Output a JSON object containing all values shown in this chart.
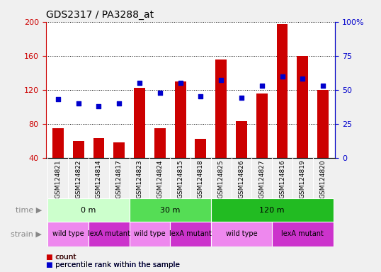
{
  "title": "GDS2317 / PA3288_at",
  "samples": [
    "GSM124821",
    "GSM124822",
    "GSM124814",
    "GSM124817",
    "GSM124823",
    "GSM124824",
    "GSM124815",
    "GSM124818",
    "GSM124825",
    "GSM124826",
    "GSM124827",
    "GSM124816",
    "GSM124819",
    "GSM124820"
  ],
  "counts": [
    75,
    60,
    63,
    58,
    122,
    75,
    130,
    62,
    156,
    83,
    116,
    197,
    160,
    120
  ],
  "percentiles": [
    43,
    40,
    38,
    40,
    55,
    48,
    55,
    45,
    57,
    44,
    53,
    60,
    58,
    53
  ],
  "ylim_left": [
    40,
    200
  ],
  "ylim_right": [
    0,
    100
  ],
  "yticks_left": [
    40,
    80,
    120,
    160,
    200
  ],
  "yticks_right": [
    0,
    25,
    50,
    75,
    100
  ],
  "bar_color": "#cc0000",
  "dot_color": "#0000cc",
  "time_groups": [
    {
      "label": "0 m",
      "start": 0,
      "end": 4,
      "color": "#ccffcc"
    },
    {
      "label": "30 m",
      "start": 4,
      "end": 8,
      "color": "#55dd55"
    },
    {
      "label": "120 m",
      "start": 8,
      "end": 14,
      "color": "#22bb22"
    }
  ],
  "strain_groups": [
    {
      "label": "wild type",
      "start": 0,
      "end": 2,
      "color": "#ee88ee"
    },
    {
      "label": "lexA mutant",
      "start": 2,
      "end": 4,
      "color": "#cc33cc"
    },
    {
      "label": "wild type",
      "start": 4,
      "end": 6,
      "color": "#ee88ee"
    },
    {
      "label": "lexA mutant",
      "start": 6,
      "end": 8,
      "color": "#cc33cc"
    },
    {
      "label": "wild type",
      "start": 8,
      "end": 11,
      "color": "#ee88ee"
    },
    {
      "label": "lexA mutant",
      "start": 11,
      "end": 14,
      "color": "#cc33cc"
    }
  ],
  "background_color": "#f0f0f0",
  "plot_bg": "#ffffff",
  "tick_label_bg": "#e0e0e0",
  "axis_color_left": "#cc0000",
  "axis_color_right": "#0000cc",
  "grid_color": "#000000",
  "border_color": "#888888"
}
